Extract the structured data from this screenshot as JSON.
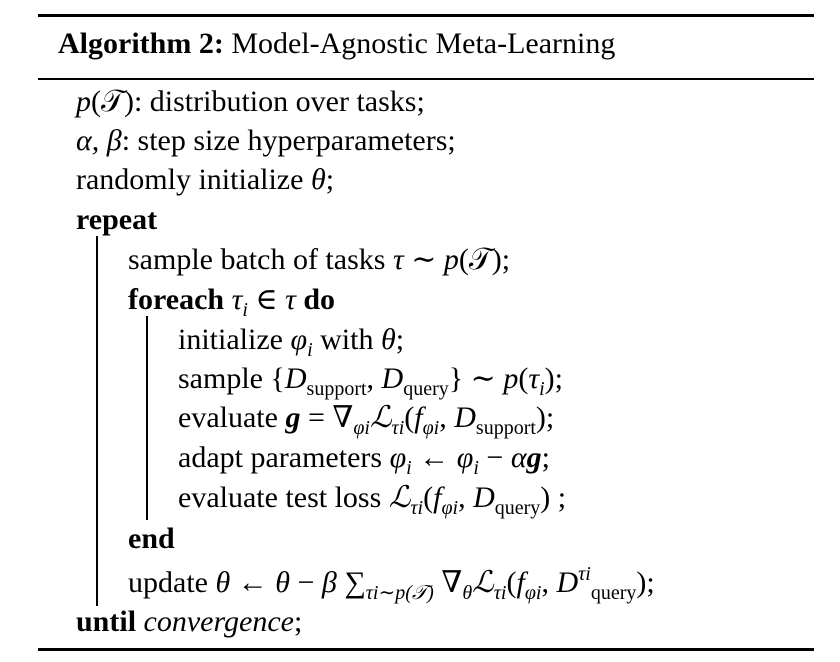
{
  "caption": {
    "label": "Algorithm 2:",
    "title": "Model-Agnostic Meta-Learning"
  },
  "lines": [
    {
      "id": "l1",
      "parts": [
        {
          "t": "p",
          "c": "it"
        },
        {
          "t": "(𝒯): distribution over tasks;"
        }
      ]
    },
    {
      "id": "l2",
      "parts": [
        {
          "t": "α, β",
          "c": "it"
        },
        {
          "t": ": step size hyperparameters;"
        }
      ]
    },
    {
      "id": "l3",
      "parts": [
        {
          "t": "randomly initialize "
        },
        {
          "t": "θ",
          "c": "it"
        },
        {
          "t": ";"
        }
      ]
    },
    {
      "id": "l4",
      "parts": [
        {
          "t": "repeat",
          "c": "kw"
        }
      ]
    },
    {
      "id": "l5",
      "parts": [
        {
          "t": "sample batch of tasks "
        },
        {
          "t": "τ",
          "c": "it"
        },
        {
          "t": " ∼ "
        },
        {
          "t": "p",
          "c": "it"
        },
        {
          "t": "(𝒯);"
        }
      ]
    },
    {
      "id": "l6",
      "parts": [
        {
          "t": "foreach",
          "c": "kw"
        },
        {
          "t": " "
        },
        {
          "t": "τ",
          "c": "it"
        },
        {
          "t": "i",
          "c": "it",
          "sub": true
        },
        {
          "t": " ∈ "
        },
        {
          "t": "τ",
          "c": "it"
        },
        {
          "t": " "
        },
        {
          "t": "do",
          "c": "kw"
        }
      ]
    },
    {
      "id": "l7",
      "parts": [
        {
          "t": "initialize "
        },
        {
          "t": "φ",
          "c": "it"
        },
        {
          "t": "i",
          "c": "it",
          "sub": true
        },
        {
          "t": " with "
        },
        {
          "t": "θ",
          "c": "it"
        },
        {
          "t": ";"
        }
      ]
    },
    {
      "id": "l8",
      "parts": [
        {
          "t": "sample {"
        },
        {
          "t": "D",
          "c": "it"
        },
        {
          "t": "support",
          "sub": true
        },
        {
          "t": ", "
        },
        {
          "t": "D",
          "c": "it"
        },
        {
          "t": "query",
          "sub": true
        },
        {
          "t": "} ∼ "
        },
        {
          "t": "p",
          "c": "it"
        },
        {
          "t": "("
        },
        {
          "t": "τ",
          "c": "it"
        },
        {
          "t": "i",
          "c": "it",
          "sub": true
        },
        {
          "t": ");"
        }
      ]
    },
    {
      "id": "l9",
      "parts": [
        {
          "t": "evaluate "
        },
        {
          "t": "g",
          "c": "bi"
        },
        {
          "t": " = ∇"
        },
        {
          "t": "φi",
          "c": "it",
          "sub": true
        },
        {
          "t": "ℒ",
          "c": "it"
        },
        {
          "t": "τi",
          "c": "it",
          "sub": true
        },
        {
          "t": "("
        },
        {
          "t": "f",
          "c": "it"
        },
        {
          "t": "φi",
          "c": "it",
          "sub": true
        },
        {
          "t": ", "
        },
        {
          "t": "D",
          "c": "it"
        },
        {
          "t": "support",
          "sub": true
        },
        {
          "t": ");"
        }
      ]
    },
    {
      "id": "l10",
      "parts": [
        {
          "t": "adapt parameters "
        },
        {
          "t": "φ",
          "c": "it"
        },
        {
          "t": "i",
          "c": "it",
          "sub": true
        },
        {
          "t": " ← "
        },
        {
          "t": "φ",
          "c": "it"
        },
        {
          "t": "i",
          "c": "it",
          "sub": true
        },
        {
          "t": " − "
        },
        {
          "t": "α",
          "c": "it"
        },
        {
          "t": "g",
          "c": "bi"
        },
        {
          "t": ";"
        }
      ]
    },
    {
      "id": "l11",
      "parts": [
        {
          "t": "evaluate test loss "
        },
        {
          "t": "ℒ",
          "c": "it"
        },
        {
          "t": "τi",
          "c": "it",
          "sub": true
        },
        {
          "t": "("
        },
        {
          "t": "f",
          "c": "it"
        },
        {
          "t": "φi",
          "c": "it",
          "sub": true
        },
        {
          "t": ", "
        },
        {
          "t": "D",
          "c": "it"
        },
        {
          "t": "query",
          "sub": true
        },
        {
          "t": ") ;"
        }
      ]
    },
    {
      "id": "l12",
      "parts": [
        {
          "t": "end",
          "c": "kw"
        }
      ]
    },
    {
      "id": "l13",
      "parts": [
        {
          "t": "update "
        },
        {
          "t": "θ",
          "c": "it"
        },
        {
          "t": " ← "
        },
        {
          "t": "θ",
          "c": "it"
        },
        {
          "t": " − "
        },
        {
          "t": "β",
          "c": "it"
        },
        {
          "t": " ∑"
        },
        {
          "t": "τi∼p(𝒯)",
          "c": "it",
          "sub": true
        },
        {
          "t": " ∇"
        },
        {
          "t": "θ",
          "c": "it",
          "sub": true
        },
        {
          "t": "ℒ",
          "c": "it"
        },
        {
          "t": "τi",
          "c": "it",
          "sub": true
        },
        {
          "t": "("
        },
        {
          "t": "f",
          "c": "it"
        },
        {
          "t": "φi",
          "c": "it",
          "sub": true
        },
        {
          "t": ", "
        },
        {
          "t": "D",
          "c": "it"
        },
        {
          "t": "τi",
          "c": "it",
          "sup": true
        },
        {
          "t": "query",
          "sub": true
        },
        {
          "t": ");"
        }
      ]
    },
    {
      "id": "l14",
      "parts": [
        {
          "t": "until",
          "c": "kw"
        },
        {
          "t": " "
        },
        {
          "t": "convergence",
          "c": "it"
        },
        {
          "t": ";"
        }
      ]
    }
  ]
}
